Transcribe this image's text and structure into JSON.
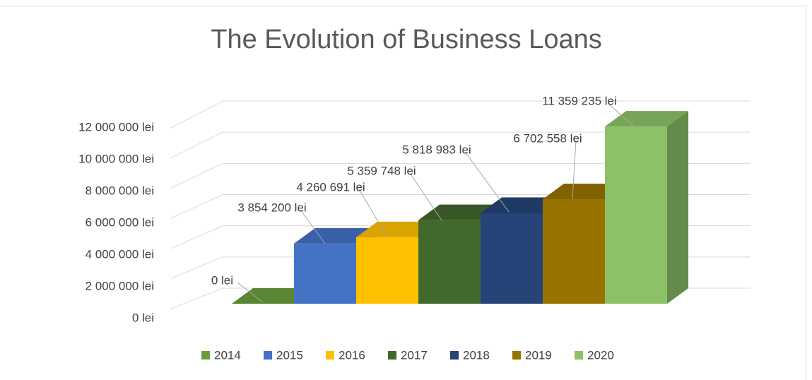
{
  "chart_data": {
    "type": "bar3d",
    "title": "The Evolution of Business Loans",
    "series": [
      {
        "name": "2014",
        "color": "#6a9c3c",
        "values": [
          0
        ],
        "value_labels": [
          "0 lei"
        ]
      },
      {
        "name": "2015",
        "color": "#4472c4",
        "values": [
          3854200
        ],
        "value_labels": [
          "3 854 200 lei"
        ]
      },
      {
        "name": "2016",
        "color": "#ffc000",
        "values": [
          4260691
        ],
        "value_labels": [
          "4 260 691 lei"
        ]
      },
      {
        "name": "2017",
        "color": "#43682b",
        "values": [
          5359748
        ],
        "value_labels": [
          "5 359 748 lei"
        ]
      },
      {
        "name": "2018",
        "color": "#264478",
        "values": [
          5818983
        ],
        "value_labels": [
          "5 818 983 lei"
        ]
      },
      {
        "name": "2019",
        "color": "#997300",
        "values": [
          6702558
        ],
        "value_labels": [
          "6 702 558 lei"
        ]
      },
      {
        "name": "2020",
        "color": "#8cc168",
        "values": [
          11359235
        ],
        "value_labels": [
          "11 359 235 lei"
        ]
      }
    ],
    "ylim": [
      0,
      12000000
    ],
    "yticks": [
      {
        "value": 0,
        "label": "0 lei"
      },
      {
        "value": 2000000,
        "label": "2 000 000 lei"
      },
      {
        "value": 4000000,
        "label": "4 000 000 lei"
      },
      {
        "value": 6000000,
        "label": "6 000 000 lei"
      },
      {
        "value": 8000000,
        "label": "8 000 000 lei"
      },
      {
        "value": 10000000,
        "label": "10 000 000 lei"
      },
      {
        "value": 12000000,
        "label": "12 000 000 lei"
      }
    ],
    "grid": true,
    "legend": "bottom"
  }
}
